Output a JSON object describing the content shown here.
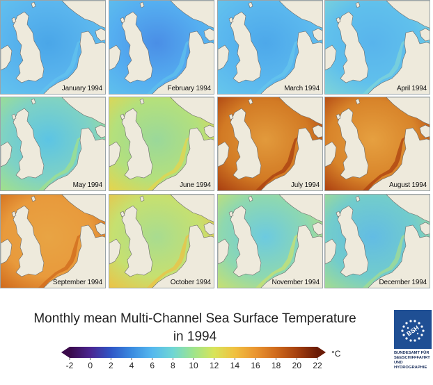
{
  "months": [
    {
      "label": "January 1994",
      "color": "#5bb6ee",
      "inner": "#4aa6e8",
      "coast": "#63c3ee"
    },
    {
      "label": "February 1994",
      "color": "#55aef0",
      "inner": "#4a8ee6",
      "coast": "#5fc0ec"
    },
    {
      "label": "March 1994",
      "color": "#5bb8ee",
      "inner": "#4da8ea",
      "coast": "#66c6ec"
    },
    {
      "label": "April 1994",
      "color": "#60c0ec",
      "inner": "#58b4ec",
      "coast": "#7fd4d8"
    },
    {
      "label": "May 1994",
      "color": "#7fd2c4",
      "inner": "#5cc4e4",
      "coast": "#a2e08a"
    },
    {
      "label": "June 1994",
      "color": "#b4e07c",
      "inner": "#9ad89a",
      "coast": "#e6d44c"
    },
    {
      "label": "July 1994",
      "color": "#d27a24",
      "inner": "#e29a3c",
      "coast": "#a83e10"
    },
    {
      "label": "August 1994",
      "color": "#d8842a",
      "inner": "#e6a040",
      "coast": "#ac4010"
    },
    {
      "label": "September 1994",
      "color": "#e89a3c",
      "inner": "#e8a444",
      "coast": "#d06a1c"
    },
    {
      "label": "October 1994",
      "color": "#c6e070",
      "inner": "#a8dc90",
      "coast": "#ecc246"
    },
    {
      "label": "November 1994",
      "color": "#8ed8b0",
      "inner": "#6ccae0",
      "coast": "#c8e070"
    },
    {
      "label": "December 1994",
      "color": "#72cccc",
      "inner": "#62bce4",
      "coast": "#a4dc90"
    }
  ],
  "title_line1": "Monthly mean Multi-Channel Sea Surface Temperature",
  "title_line2": "in 1994",
  "colorbar": {
    "ticks": [
      "-2",
      "0",
      "2",
      "4",
      "6",
      "8",
      "10",
      "12",
      "14",
      "16",
      "18",
      "20",
      "22"
    ],
    "unit": "°C",
    "stops": [
      "#3a0a4a",
      "#4b2590",
      "#2f56c6",
      "#3a8be0",
      "#55b8ee",
      "#6fd6d4",
      "#9ee48c",
      "#d8e45a",
      "#f0c040",
      "#ea9530",
      "#cf6a1c",
      "#a5400f",
      "#6a1b06"
    ]
  },
  "logo": {
    "lines": [
      "BUNDESAMT FÜR",
      "SEESCHIFFFAHRT",
      "UND",
      "HYDROGRAPHIE"
    ],
    "mark": "BSH",
    "box_color": "#1f4f94"
  }
}
